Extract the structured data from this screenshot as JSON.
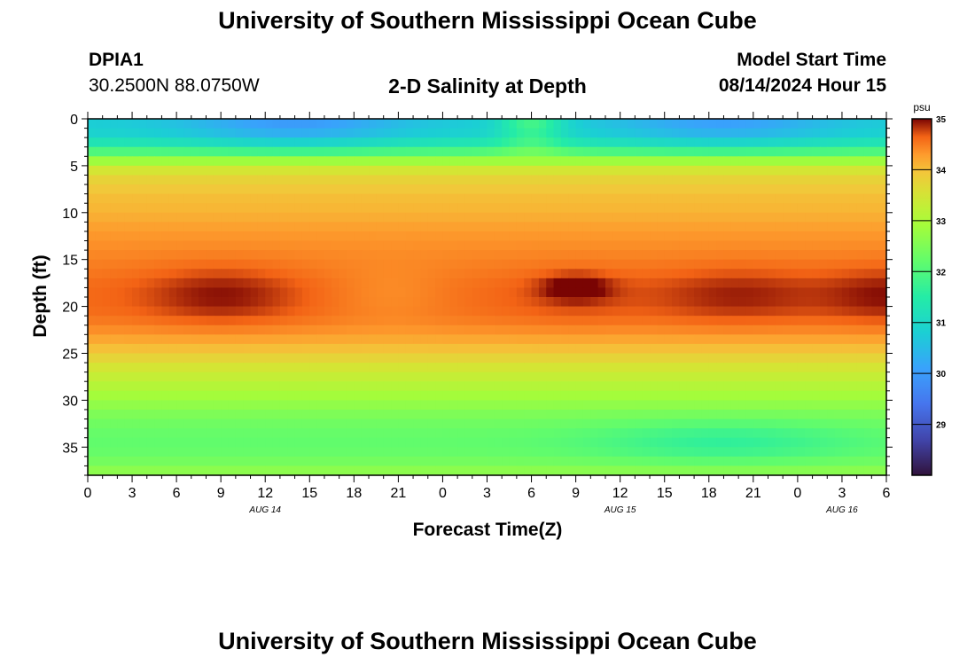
{
  "header": {
    "title": "University of Southern Mississippi Ocean Cube",
    "station_id": "DPIA1",
    "coordinates": "30.2500N  88.0750W",
    "plot_title": "2-D Salinity at Depth",
    "model_start_label": "Model Start Time",
    "model_start_time": "08/14/2024 Hour 15"
  },
  "footer": {
    "title": "University of Southern Mississippi Ocean Cube"
  },
  "chart_data": {
    "type": "heatmap",
    "title": "2-D Salinity at Depth",
    "xlabel": "Forecast Time(Z)",
    "ylabel": "Depth (ft)",
    "x_ticks": [
      "0",
      "3",
      "6",
      "9",
      "12",
      "15",
      "18",
      "21",
      "0",
      "3",
      "6",
      "9",
      "12",
      "15",
      "18",
      "21",
      "0",
      "3",
      "6"
    ],
    "x_range_hours": [
      0,
      54
    ],
    "date_labels": [
      {
        "label": "AUG 14",
        "hour": 12
      },
      {
        "label": "AUG 15",
        "hour": 36
      },
      {
        "label": "AUG 16",
        "hour": 51
      }
    ],
    "y_ticks": [
      0,
      5,
      10,
      15,
      20,
      25,
      30,
      35
    ],
    "ylim": [
      0,
      38
    ],
    "colorbar": {
      "unit": "psu",
      "min": 28,
      "max": 35,
      "ticks": [
        35,
        34,
        33,
        32,
        31,
        30,
        29
      ]
    },
    "salinity_profile": {
      "depth_ft": [
        0,
        1,
        2,
        3,
        4,
        5,
        6,
        8,
        10,
        12,
        14,
        16,
        17,
        18,
        19,
        20,
        21,
        22,
        23,
        24,
        25,
        26,
        27,
        28,
        29,
        30,
        31,
        32,
        33,
        34,
        35,
        36,
        37,
        38
      ],
      "psu": [
        30.8,
        30.8,
        31.0,
        31.6,
        32.4,
        33.3,
        33.7,
        34.0,
        34.1,
        34.3,
        34.4,
        34.5,
        34.55,
        34.6,
        34.6,
        34.6,
        34.55,
        34.45,
        34.3,
        34.1,
        33.9,
        33.6,
        33.4,
        33.2,
        33.0,
        32.8,
        32.6,
        32.4,
        32.3,
        32.2,
        32.2,
        32.3,
        32.5,
        32.8
      ]
    }
  }
}
